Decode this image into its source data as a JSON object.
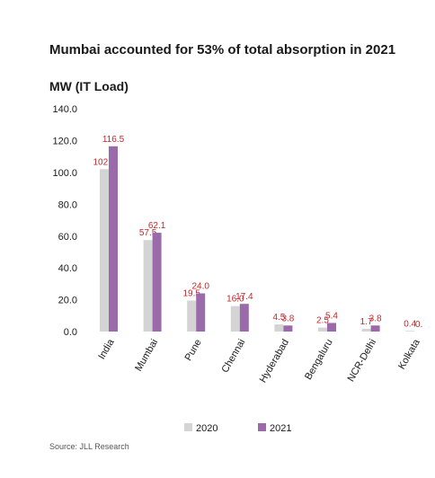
{
  "chart_data": {
    "type": "bar",
    "title": "Mumbai accounted for 53% of total absorption in 2021",
    "ylabel": "MW (IT Load)",
    "xlabel": "",
    "categories": [
      "India",
      "Mumbai",
      "Pune",
      "Chennai",
      "Hyderabad",
      "Bengaluru",
      "NCR-Delhi",
      "Kolkata"
    ],
    "series": [
      {
        "name": "2020",
        "values": [
          102.1,
          57.5,
          19.5,
          16.0,
          4.5,
          2.5,
          1.7,
          0.4
        ],
        "labels": [
          "102.1",
          "57.5",
          "19.5",
          "16.0",
          "4.5",
          "2.5",
          "1.7",
          "0.4"
        ],
        "color": "#d4d4d4"
      },
      {
        "name": "2021",
        "values": [
          116.5,
          62.1,
          24.0,
          17.4,
          3.8,
          5.4,
          3.8,
          0.0
        ],
        "labels": [
          "116.5",
          "62.1",
          "24.0",
          "17.4",
          "3.8",
          "5.4",
          "3.8",
          "0."
        ],
        "color": "#9b6aab"
      }
    ],
    "ylim": [
      0,
      140
    ],
    "yticks": [
      "0.0",
      "20.0",
      "40.0",
      "60.0",
      "80.0",
      "100.0",
      "120.0",
      "140.0"
    ],
    "grid": false,
    "legend_position": "bottom-center",
    "data_label_color": "#c0282d",
    "source": "Source: JLL Research"
  }
}
